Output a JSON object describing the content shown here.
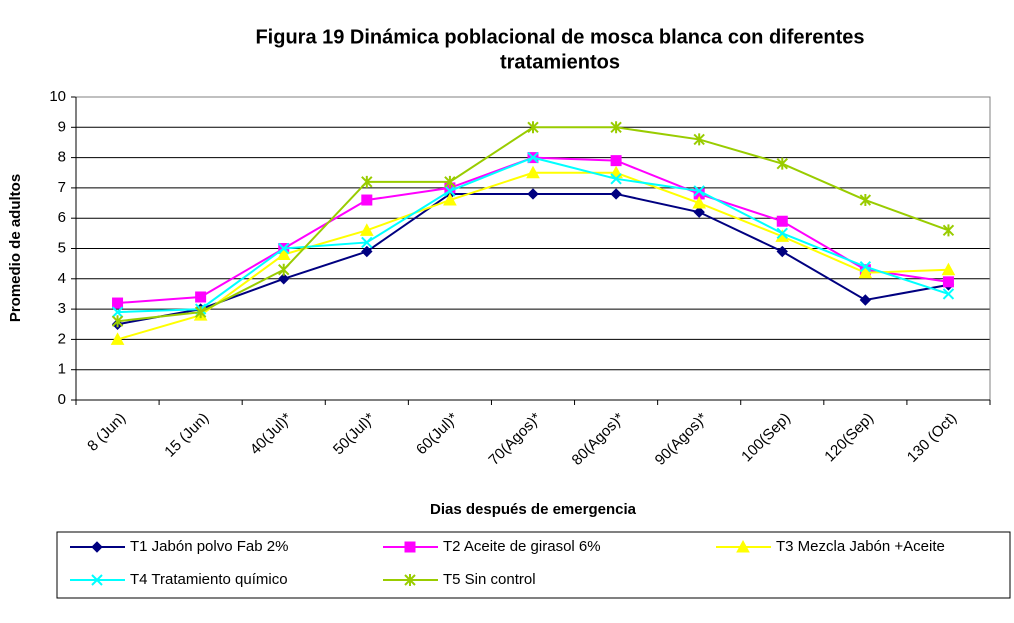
{
  "chart_data": {
    "type": "line",
    "title": [
      "Figura 19 Dinámica poblacional de mosca blanca con diferentes",
      "tratamientos"
    ],
    "x_label": "Dias después de emergencia",
    "y_label": "Promedio de adultos",
    "categories": [
      "8 (Jun)",
      "15 (Jun)",
      "40(Jul)*",
      "50(Jul)*",
      "60(Jul)*",
      "70(Agos)*",
      "80(Agos)*",
      "90(Agos)*",
      "100(Sep)",
      "120(Sep)",
      "130 (Oct)"
    ],
    "ylim": [
      0,
      10
    ],
    "yticks": [
      0,
      1,
      2,
      3,
      4,
      5,
      6,
      7,
      8,
      9,
      10
    ],
    "grid": true,
    "series": [
      {
        "name": "T1 Jabón polvo Fab 2%",
        "color": "#000080",
        "marker": "diamond",
        "values": [
          2.5,
          3.0,
          4.0,
          4.9,
          6.8,
          6.8,
          6.8,
          6.2,
          4.9,
          3.3,
          3.8
        ]
      },
      {
        "name": "T2 Aceite de girasol 6%",
        "color": "#ff00ff",
        "marker": "square",
        "values": [
          3.2,
          3.4,
          5.0,
          6.6,
          7.0,
          8.0,
          7.9,
          6.8,
          5.9,
          4.3,
          3.9
        ]
      },
      {
        "name": "T3 Mezcla Jabón +Aceite",
        "color": "#ffff00",
        "marker": "triangle",
        "values": [
          2.0,
          2.8,
          4.8,
          5.6,
          6.6,
          7.5,
          7.5,
          6.5,
          5.4,
          4.2,
          4.3
        ]
      },
      {
        "name": "T4 Tratamiento químico",
        "color": "#00ffff",
        "marker": "x",
        "values": [
          2.9,
          3.0,
          5.0,
          5.2,
          6.9,
          8.0,
          7.3,
          6.9,
          5.5,
          4.4,
          3.5
        ]
      },
      {
        "name": "T5 Sin control",
        "color": "#99cc00",
        "marker": "star",
        "values": [
          2.6,
          2.9,
          4.3,
          7.2,
          7.2,
          9.0,
          9.0,
          8.6,
          7.8,
          6.6,
          5.6
        ]
      }
    ]
  }
}
